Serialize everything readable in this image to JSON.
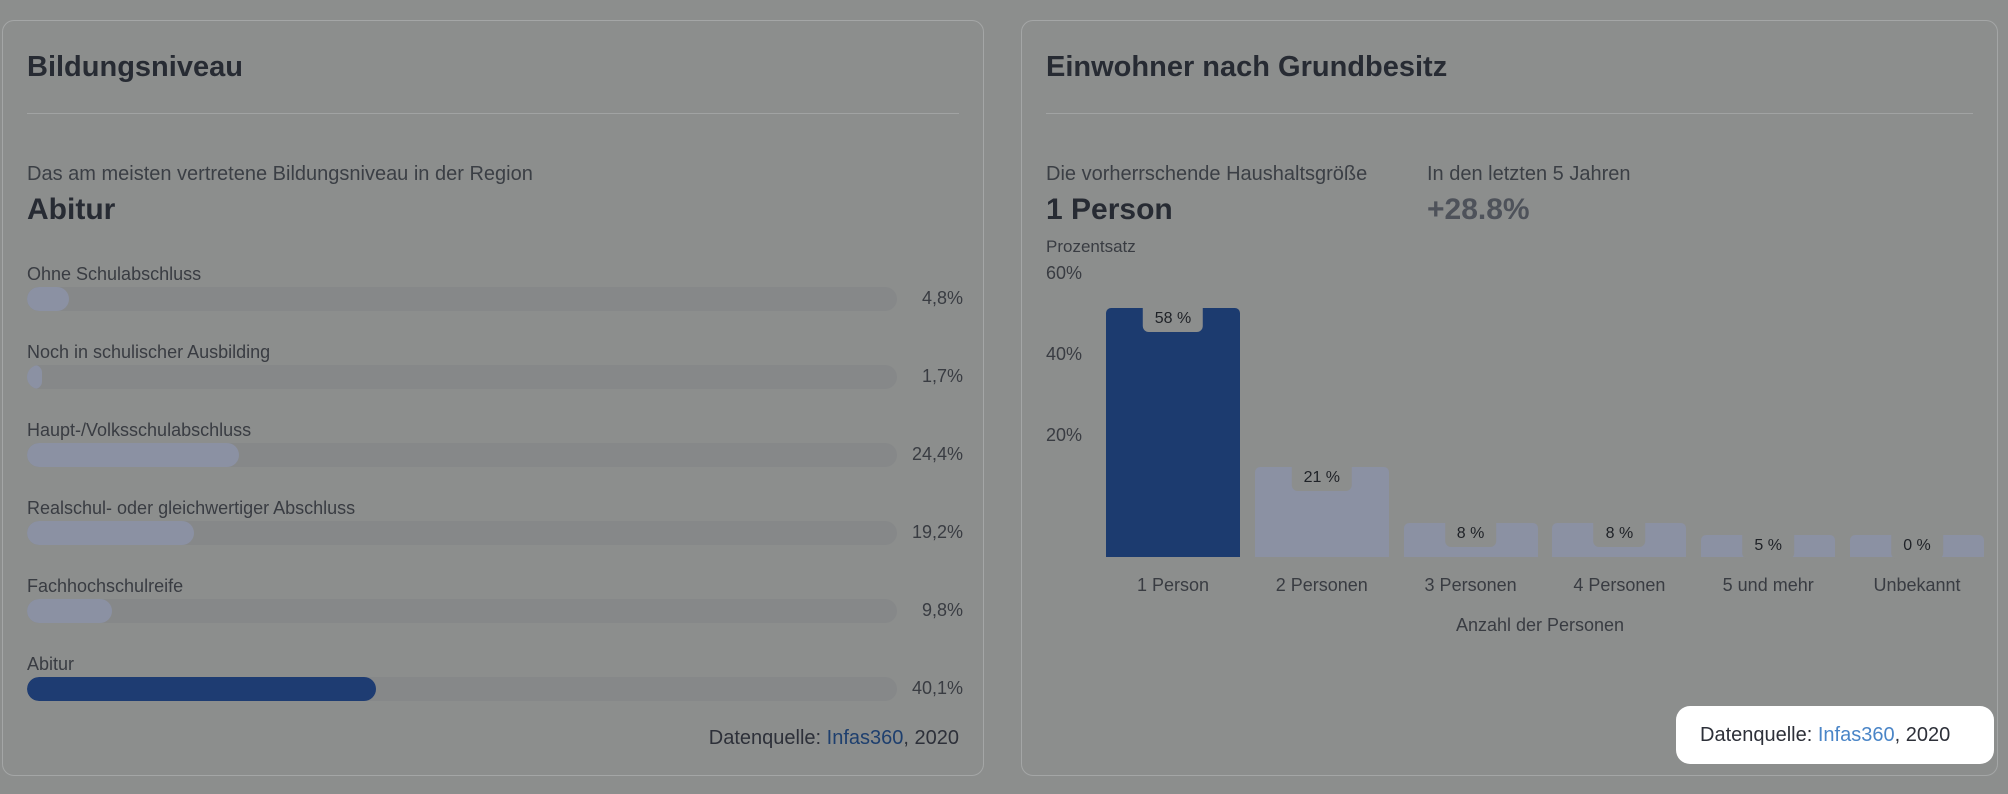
{
  "left": {
    "title": "Bildungsniveau",
    "subtitle": "Das am meisten vertretene Bildungsniveau in der Region",
    "highlight": "Abitur",
    "rows": [
      {
        "label": "Ohne Schulabschluss",
        "pct_text": "4,8%",
        "value": 4.8,
        "active": false
      },
      {
        "label": "Noch in schulischer Ausbilding",
        "pct_text": "1,7%",
        "value": 1.7,
        "active": false
      },
      {
        "label": "Haupt-/Volksschulabschluss",
        "pct_text": "24,4%",
        "value": 24.4,
        "active": false
      },
      {
        "label": "Realschul- oder gleichwertiger Abschluss",
        "pct_text": "19,2%",
        "value": 19.2,
        "active": false
      },
      {
        "label": "Fachhochschulreife",
        "pct_text": "9,8%",
        "value": 9.8,
        "active": false
      },
      {
        "label": "Abitur",
        "pct_text": "40,1%",
        "value": 40.1,
        "active": true
      }
    ],
    "source_prefix": "Datenquelle: ",
    "source_link": "Infas360",
    "source_suffix": ", 2020"
  },
  "right": {
    "title": "Einwohner nach Grundbesitz",
    "stat1_label": "Die vorherrschende Haushaltsgröße",
    "stat1_value": "1 Person",
    "stat2_label": "In den letzten 5 Jahren",
    "stat2_value": "+28.8%",
    "source_prefix": "Datenquelle: ",
    "source_link": "Infas360",
    "source_suffix": ", 2020"
  },
  "chart_data": {
    "type": "bar",
    "categories": [
      "1 Person",
      "2 Personen",
      "3 Personen",
      "4 Personen",
      "5 und mehr",
      "Unbekannt"
    ],
    "values": [
      58,
      21,
      8,
      8,
      5,
      0
    ],
    "value_labels": [
      "58 %",
      "21 %",
      "8 %",
      "8 %",
      "5 %",
      "0 %"
    ],
    "ylabel": "Prozentsatz",
    "xlabel": "Anzahl der Personen",
    "yticks": [
      "60%",
      "40%",
      "20%"
    ],
    "ylim": [
      0,
      60
    ],
    "highlight_index": 0,
    "colors": {
      "highlight": "#1c3b6f",
      "default": "#8b91a3"
    }
  }
}
